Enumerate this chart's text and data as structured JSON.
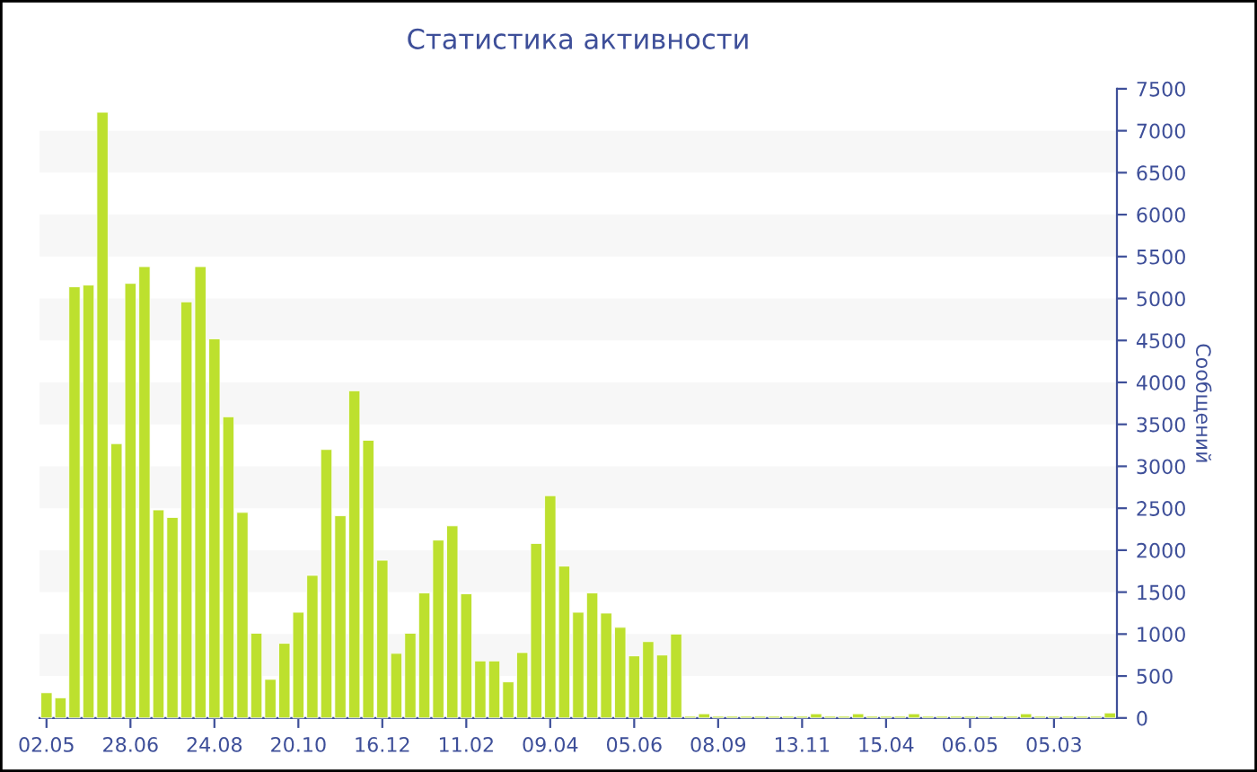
{
  "chart_data": {
    "type": "bar",
    "title": "Статистика активности",
    "ylabel": "Сообщений",
    "categories": [
      "02.05",
      null,
      null,
      null,
      null,
      null,
      "28.06",
      null,
      null,
      null,
      null,
      null,
      "24.08",
      null,
      null,
      null,
      null,
      null,
      "20.10",
      null,
      null,
      null,
      null,
      null,
      "16.12",
      null,
      null,
      null,
      null,
      null,
      "11.02",
      null,
      null,
      null,
      null,
      null,
      "09.04",
      null,
      null,
      null,
      null,
      null,
      "05.06",
      null,
      null,
      null,
      null,
      null,
      "08.09",
      null,
      null,
      null,
      null,
      null,
      "13.11",
      null,
      null,
      null,
      null,
      null,
      "15.04",
      null,
      null,
      null,
      null,
      null,
      "06.05",
      null,
      null,
      null,
      null,
      null,
      "05.03",
      null,
      null,
      null,
      null
    ],
    "values": [
      300,
      240,
      5140,
      5160,
      7220,
      3270,
      5180,
      5380,
      2480,
      2390,
      4960,
      5380,
      4520,
      3590,
      2450,
      1010,
      460,
      890,
      1260,
      1700,
      3200,
      2410,
      3900,
      3310,
      1880,
      770,
      1010,
      1490,
      2120,
      2290,
      1480,
      680,
      680,
      430,
      780,
      2080,
      2650,
      1810,
      1260,
      1490,
      1250,
      1080,
      740,
      910,
      750,
      1000,
      20,
      50,
      20,
      20,
      20,
      20,
      20,
      20,
      20,
      50,
      20,
      20,
      50,
      20,
      20,
      20,
      50,
      20,
      20,
      20,
      20,
      20,
      20,
      20,
      50,
      20,
      20,
      20,
      20,
      20,
      60
    ],
    "color": "#bde02e",
    "ylim": [
      0,
      7500
    ],
    "yticks": [
      0,
      500,
      1000,
      1500,
      2000,
      2500,
      3000,
      3500,
      4000,
      4500,
      5000,
      5500,
      6000,
      6500,
      7000,
      7500
    ],
    "bands": [
      {
        "axis": "y",
        "from": 500,
        "to": 1000,
        "color": "#f7f7f7"
      },
      {
        "axis": "y",
        "from": 1500,
        "to": 2000,
        "color": "#f7f7f7"
      },
      {
        "axis": "y",
        "from": 2500,
        "to": 3000,
        "color": "#f7f7f7"
      },
      {
        "axis": "y",
        "from": 3500,
        "to": 4000,
        "color": "#f7f7f7"
      },
      {
        "axis": "y",
        "from": 4500,
        "to": 5000,
        "color": "#f7f7f7"
      },
      {
        "axis": "y",
        "from": 5500,
        "to": 6000,
        "color": "#f7f7f7"
      },
      {
        "axis": "y",
        "from": 6500,
        "to": 7000,
        "color": "#f7f7f7"
      }
    ]
  }
}
